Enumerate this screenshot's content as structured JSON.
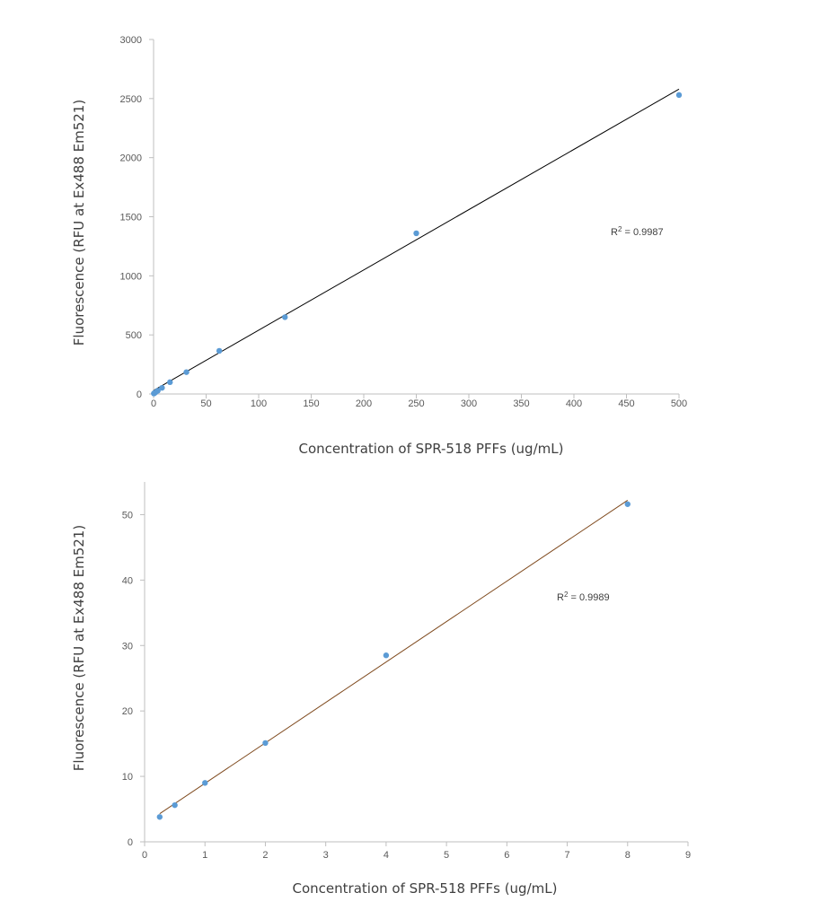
{
  "chart_data": [
    {
      "type": "scatter",
      "xlabel": "Concentration of SPR-518 PFFs (ug/mL)",
      "ylabel": "Fluorescence (RFU at Ex488 Em521)",
      "xlim": [
        0,
        500
      ],
      "ylim": [
        0,
        3000
      ],
      "xticks": [
        0,
        50,
        100,
        150,
        200,
        250,
        300,
        350,
        400,
        450,
        500
      ],
      "yticks": [
        0,
        500,
        1000,
        1500,
        2000,
        2500,
        3000
      ],
      "grid": false,
      "marker_color": "#5b9bd5",
      "trendline_color": "#000000",
      "trendline": {
        "x": [
          0,
          500
        ],
        "y": [
          30,
          2580
        ]
      },
      "annotation": {
        "r2_prefix": "R",
        "r2_sup": "2",
        "r2_value": " = 0.9987"
      },
      "series": [
        {
          "x": [
            0.25,
            0.5,
            1,
            2,
            4,
            8,
            15.6,
            31.25,
            62.5,
            125,
            250,
            500
          ],
          "y": [
            4,
            6,
            9,
            15,
            28,
            52,
            100,
            185,
            365,
            650,
            1360,
            2530
          ]
        }
      ]
    },
    {
      "type": "scatter",
      "xlabel": "Concentration of SPR-518 PFFs (ug/mL)",
      "ylabel": "Fluorescence (RFU at Ex488 Em521)",
      "xlim": [
        0,
        9
      ],
      "ylim": [
        0,
        55
      ],
      "xticks": [
        0,
        1,
        2,
        3,
        4,
        5,
        6,
        7,
        8,
        9
      ],
      "yticks": [
        0,
        10,
        20,
        30,
        40,
        50
      ],
      "grid": false,
      "marker_color": "#5b9bd5",
      "trendline_color": "#7f4a1e",
      "trendline": {
        "x": [
          0.25,
          8
        ],
        "y": [
          4.3,
          52.2
        ]
      },
      "annotation": {
        "r2_prefix": "R",
        "r2_sup": "2",
        "r2_value": " = 0.9989"
      },
      "series": [
        {
          "x": [
            0.25,
            0.5,
            1,
            2,
            4,
            8
          ],
          "y": [
            3.8,
            5.6,
            9,
            15.1,
            28.5,
            51.6
          ]
        }
      ]
    }
  ]
}
